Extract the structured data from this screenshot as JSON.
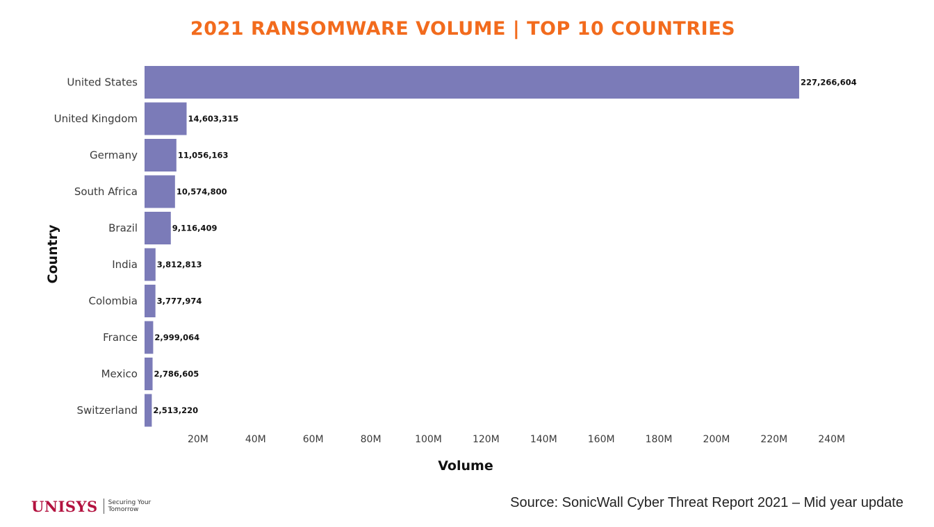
{
  "chart_data": {
    "type": "bar",
    "orientation": "horizontal",
    "title": "2021 RANSOMWARE VOLUME | TOP 10 COUNTRIES",
    "xlabel": "Volume",
    "ylabel": "Country",
    "categories": [
      "United States",
      "United Kingdom",
      "Germany",
      "South Africa",
      "Brazil",
      "India",
      "Colombia",
      "France",
      "Mexico",
      "Switzerland"
    ],
    "values": [
      227266604,
      14603315,
      11056163,
      10574800,
      9116409,
      3812813,
      3777974,
      2999064,
      2786605,
      2513220
    ],
    "value_labels": [
      "227,266,604",
      "14,603,315",
      "11,056,163",
      "10,574,800",
      "9,116,409",
      "3,812,813",
      "3,777,974",
      "2,999,064",
      "2,786,605",
      "2,513,220"
    ],
    "xticks": [
      20000000,
      40000000,
      60000000,
      80000000,
      100000000,
      120000000,
      140000000,
      160000000,
      180000000,
      200000000,
      220000000,
      240000000
    ],
    "xtick_labels": [
      "20M",
      "40M",
      "60M",
      "80M",
      "100M",
      "120M",
      "140M",
      "160M",
      "180M",
      "200M",
      "220M",
      "240M"
    ],
    "xlim": [
      0,
      250000000
    ],
    "grid": false,
    "bar_color": "#7b7bb8",
    "title_color": "#f26b1d"
  },
  "footer": {
    "logo_text": "UNISYS",
    "logo_tagline_1": "Securing Your",
    "logo_tagline_2": "Tomorrow",
    "logo_color": "#b3123f",
    "source": "Source: SonicWall Cyber Threat Report 2021 – Mid year update"
  }
}
